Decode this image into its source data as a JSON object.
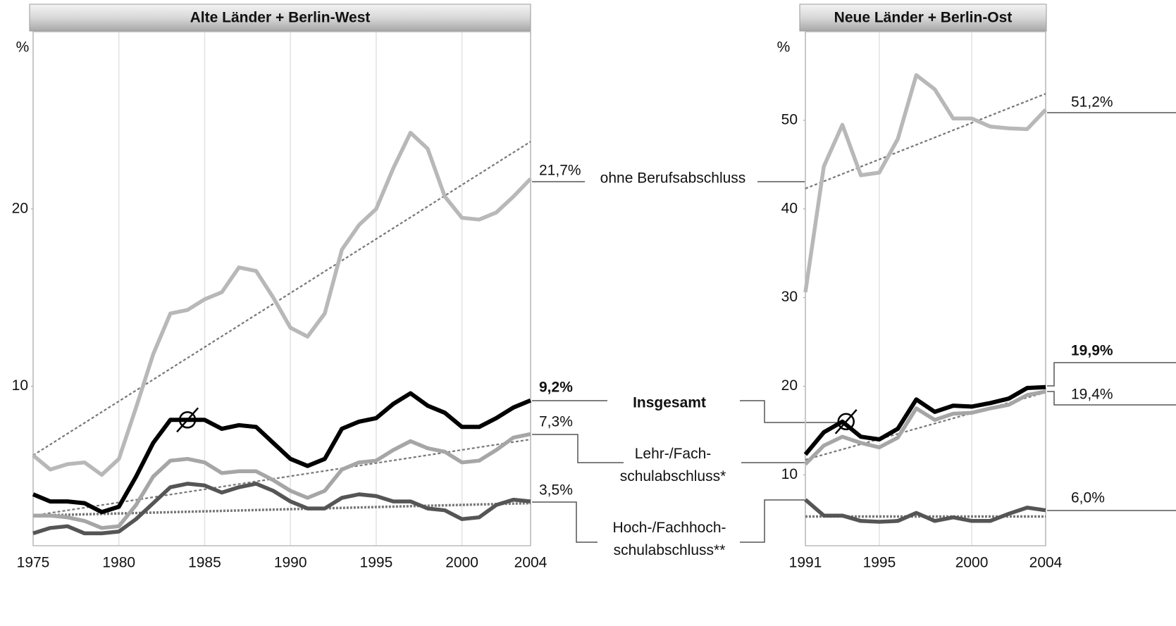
{
  "chart_data": [
    {
      "type": "line",
      "title": "Alte Länder + Berlin-West",
      "y_unit": "%",
      "x": [
        1975,
        1976,
        1977,
        1978,
        1979,
        1980,
        1981,
        1982,
        1983,
        1984,
        1985,
        1986,
        1987,
        1988,
        1989,
        1990,
        1991,
        1992,
        1993,
        1994,
        1995,
        1996,
        1997,
        1998,
        1999,
        2000,
        2001,
        2002,
        2003,
        2004
      ],
      "xlim": [
        1975,
        2004
      ],
      "xticks": [
        1975,
        1980,
        1985,
        1990,
        1995,
        2000,
        2004
      ],
      "ylim": [
        1,
        30
      ],
      "yticks": [
        10,
        20
      ],
      "grid": true,
      "series": [
        {
          "name": "ohne Berufsabschluss",
          "color": "#b8b8b8",
          "end_label": "21,7%",
          "values": [
            6.1,
            5.3,
            5.6,
            5.7,
            5.0,
            5.9,
            8.8,
            11.8,
            14.1,
            14.3,
            14.9,
            15.3,
            16.7,
            16.5,
            15.0,
            13.3,
            12.8,
            14.1,
            17.7,
            19.1,
            20.0,
            22.3,
            24.3,
            23.4,
            20.7,
            19.5,
            19.4,
            19.8,
            20.7,
            21.7
          ]
        },
        {
          "name": "Insgesamt",
          "color": "#000000",
          "end_label": "9,2%",
          "values": [
            3.9,
            3.5,
            3.5,
            3.4,
            2.9,
            3.2,
            4.9,
            6.8,
            8.1,
            8.1,
            8.1,
            7.6,
            7.8,
            7.7,
            6.8,
            5.9,
            5.5,
            5.9,
            7.6,
            8.0,
            8.2,
            9.0,
            9.6,
            8.9,
            8.5,
            7.7,
            7.7,
            8.2,
            8.8,
            9.2
          ]
        },
        {
          "name": "Lehr-/Fach-\nschulabschluss*",
          "color": "#a6a6a6",
          "end_label": "7,3%",
          "values": [
            2.7,
            2.7,
            2.6,
            2.4,
            2.0,
            2.1,
            3.3,
            4.9,
            5.8,
            5.9,
            5.7,
            5.1,
            5.2,
            5.2,
            4.7,
            4.1,
            3.7,
            4.1,
            5.3,
            5.7,
            5.8,
            6.4,
            6.9,
            6.5,
            6.3,
            5.7,
            5.8,
            6.4,
            7.1,
            7.3
          ]
        },
        {
          "name": "Hoch-/Fachhoch-\nschulabschluss**",
          "color": "#555555",
          "end_label": "3,5%",
          "values": [
            1.7,
            2.0,
            2.1,
            1.7,
            1.7,
            1.8,
            2.5,
            3.4,
            4.3,
            4.5,
            4.4,
            4.0,
            4.3,
            4.5,
            4.1,
            3.5,
            3.1,
            3.1,
            3.7,
            3.9,
            3.8,
            3.5,
            3.5,
            3.1,
            3.0,
            2.5,
            2.6,
            3.3,
            3.6,
            3.5
          ]
        }
      ],
      "trends": [
        {
          "color": "#777777",
          "x": [
            1975,
            2004
          ],
          "values": [
            6.1,
            23.8
          ]
        },
        {
          "color": "#777777",
          "x": [
            1975,
            2004
          ],
          "values": [
            2.7,
            7.0
          ]
        },
        {
          "color": "#777777",
          "x": [
            1975,
            2004
          ],
          "values": [
            2.7,
            3.4
          ]
        }
      ],
      "mean_marker": {
        "label": "Ø",
        "x": 1984,
        "y": 8.1
      }
    },
    {
      "type": "line",
      "title": "Neue Länder + Berlin-Ost",
      "y_unit": "%",
      "x": [
        1991,
        1992,
        1993,
        1994,
        1995,
        1996,
        1997,
        1998,
        1999,
        2000,
        2001,
        2002,
        2003,
        2004
      ],
      "xlim": [
        1991,
        2004
      ],
      "xticks": [
        1991,
        1995,
        2000,
        2004
      ],
      "ylim": [
        2,
        60
      ],
      "yticks": [
        10,
        20,
        30,
        40,
        50
      ],
      "grid": true,
      "series": [
        {
          "color": "#b8b8b8",
          "end_label": "51,2%",
          "values": [
            30.6,
            44.8,
            49.5,
            43.8,
            44.1,
            47.9,
            55.1,
            53.5,
            50.2,
            50.2,
            49.3,
            49.1,
            49.0,
            51.2
          ]
        },
        {
          "color": "#000000",
          "end_label": "19,9%",
          "values": [
            12.3,
            14.8,
            16.0,
            14.3,
            14.0,
            15.2,
            18.5,
            17.1,
            17.8,
            17.7,
            18.1,
            18.6,
            19.8,
            19.9
          ]
        },
        {
          "color": "#a6a6a6",
          "end_label": "19,4%",
          "values": [
            11.2,
            13.3,
            14.3,
            13.6,
            13.1,
            14.2,
            17.5,
            16.2,
            16.9,
            17.0,
            17.5,
            17.9,
            19.0,
            19.4
          ]
        },
        {
          "color": "#555555",
          "end_label": "6,0%",
          "values": [
            7.2,
            5.4,
            5.4,
            4.8,
            4.7,
            4.8,
            5.7,
            4.8,
            5.2,
            4.8,
            4.8,
            5.6,
            6.3,
            6.0
          ]
        }
      ],
      "trends": [
        {
          "color": "#777777",
          "x": [
            1991,
            2004
          ],
          "values": [
            42.3,
            53.0
          ]
        },
        {
          "color": "#777777",
          "x": [
            1991,
            2004
          ],
          "values": [
            11.7,
            19.3
          ]
        },
        {
          "color": "#777777",
          "x": [
            1991,
            2004
          ],
          "values": [
            5.3,
            5.3
          ]
        }
      ],
      "mean_marker": {
        "label": "Ø",
        "x": 1993.2,
        "y": 16.0
      }
    }
  ]
}
